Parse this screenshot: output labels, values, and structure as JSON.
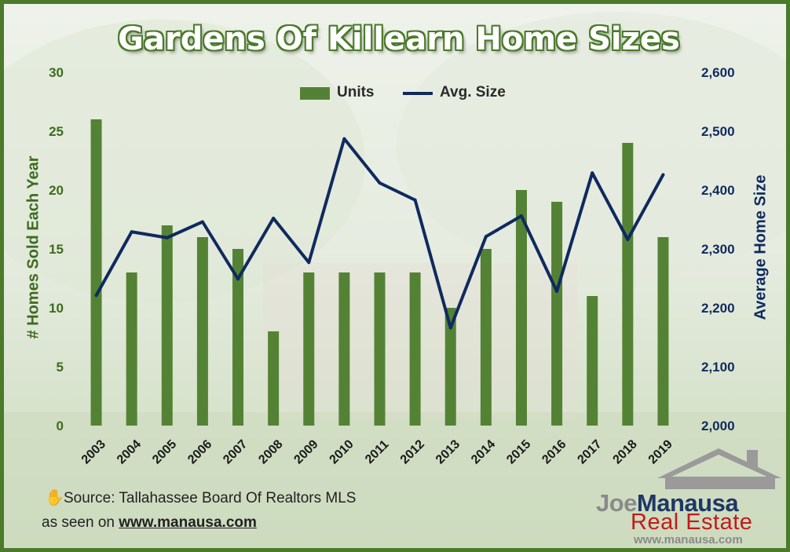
{
  "title": "Gardens Of Killearn Home Sizes",
  "legend": {
    "units": "Units",
    "size": "Avg. Size"
  },
  "colors": {
    "bars": "#548235",
    "line": "#0f2a5e",
    "frame": "#4a7a2a",
    "left_axis": "#3d6b1f",
    "right_axis": "#0f2a5e"
  },
  "chart_data": {
    "type": "bar",
    "title": "Gardens Of Killearn Home Sizes",
    "categories": [
      "2003",
      "2004",
      "2005",
      "2006",
      "2007",
      "2008",
      "2009",
      "2010",
      "2011",
      "2012",
      "2013",
      "2014",
      "2015",
      "2016",
      "2017",
      "2018",
      "2019"
    ],
    "series": [
      {
        "name": "Units",
        "type": "bar",
        "axis": "left",
        "values": [
          26,
          13,
          17,
          16,
          15,
          8,
          13,
          13,
          13,
          13,
          10,
          15,
          20,
          19,
          11,
          24,
          16
        ]
      },
      {
        "name": "Avg. Size",
        "type": "line",
        "axis": "right",
        "values": [
          2221,
          2329,
          2319,
          2346,
          2249,
          2352,
          2277,
          2487,
          2412,
          2383,
          2166,
          2321,
          2356,
          2228,
          2429,
          2316,
          2426
        ]
      }
    ],
    "y_left": {
      "label": "# Homes Sold Each Year",
      "ylim": [
        0,
        30
      ],
      "ticks": [
        "0",
        "5",
        "10",
        "15",
        "20",
        "25",
        "30"
      ]
    },
    "y_right": {
      "label": "Average Home Size",
      "ylim": [
        2000,
        2600
      ],
      "ticks": [
        "2,000",
        "2,100",
        "2,200",
        "2,300",
        "2,400",
        "2,500",
        "2,600"
      ]
    },
    "legend_position": "top-center",
    "grid": false
  },
  "footer": {
    "source_icon": "hand-icon",
    "source": "Source: Tallahassee Board Of Realtors MLS",
    "seen_on_prefix": "as seen on ",
    "seen_on_url": "www.manausa.com"
  },
  "logo": {
    "joe": "Joe",
    "manausa": "Manausa",
    "realestate": "Real Estate",
    "url": "www.manausa.com",
    "icon": "house-icon"
  }
}
